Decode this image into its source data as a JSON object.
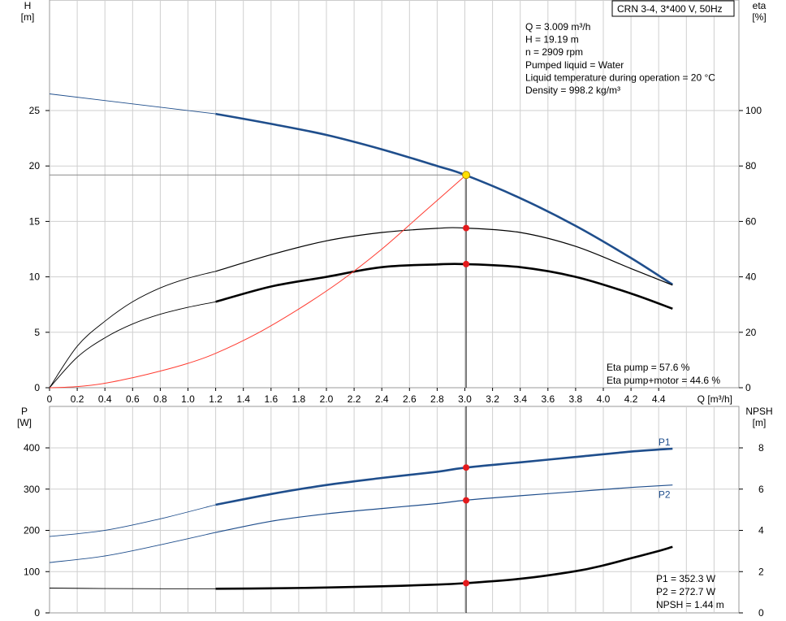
{
  "title_box": "CRN 3-4, 3*400 V, 50Hz",
  "colors": {
    "head_curve": "#1f4e8c",
    "power_curve": "#1f4e8c",
    "efficiency_curve": "#000000",
    "npsh_curve": "#000000",
    "system_curve": "#ff3b30",
    "duty_point": "#e41a1c",
    "duty_point_head": "#ffe000",
    "grid": "#cfcfcf"
  },
  "chart_data": [
    {
      "type": "line",
      "id": "head_efficiency",
      "title": "",
      "xlabel": "Q [m³/h]",
      "xlim": [
        0,
        4.8
      ],
      "x_ticks": [
        "0",
        "0.2",
        "0.4",
        "0.6",
        "0.8",
        "1.0",
        "1.2",
        "1.4",
        "1.6",
        "1.8",
        "2.0",
        "2.2",
        "2.4",
        "2.6",
        "2.8",
        "3.0",
        "3.2",
        "3.4",
        "3.6",
        "3.8",
        "4.0",
        "4.2",
        "4.4"
      ],
      "y_left": {
        "label_top": "H",
        "label_unit": "[m]",
        "lim": [
          0,
          28
        ],
        "ticks": [
          "0",
          "5",
          "10",
          "15",
          "20",
          "25"
        ]
      },
      "y_right": {
        "label_top": "eta",
        "label_unit": "[%]",
        "lim": [
          0,
          140
        ],
        "ticks": [
          "0",
          "20",
          "40",
          "60",
          "80",
          "100"
        ]
      },
      "info_lines": [
        "Q = 3.009 m³/h",
        "H = 19.19 m",
        "n = 2909 rpm",
        "Pumped liquid = Water",
        "Liquid temperature during operation = 20 °C",
        "Density = 998.2 kg/m³"
      ],
      "bottom_right_lines": [
        "Eta pump = 57.6 %",
        "Eta pump+motor = 44.6 %"
      ],
      "series": [
        {
          "role": "head",
          "axis": "left",
          "x": [
            0,
            1.2,
            1.6,
            2.0,
            2.4,
            2.8,
            3.0,
            3.4,
            3.8,
            4.2,
            4.5
          ],
          "y": [
            26.5,
            24.7,
            23.8,
            22.8,
            21.5,
            20.0,
            19.2,
            17.1,
            14.6,
            11.7,
            9.3
          ]
        },
        {
          "role": "eta_pump",
          "axis": "right",
          "x": [
            0,
            0.2,
            0.4,
            0.6,
            0.8,
            1.0,
            1.2,
            1.6,
            2.0,
            2.4,
            2.8,
            3.0,
            3.4,
            3.8,
            4.2,
            4.5
          ],
          "y": [
            0,
            15,
            24,
            31,
            36,
            39.5,
            42,
            48,
            53,
            56,
            57.5,
            57.6,
            56,
            51,
            43,
            37
          ]
        },
        {
          "role": "eta_pump_motor",
          "axis": "right",
          "x": [
            0,
            0.2,
            0.4,
            0.6,
            0.8,
            1.0,
            1.2,
            1.6,
            2.0,
            2.4,
            2.8,
            3.0,
            3.4,
            3.8,
            4.2,
            4.5
          ],
          "y": [
            0,
            11,
            18,
            23,
            26.5,
            29,
            31,
            36.5,
            40,
            43.5,
            44.5,
            44.6,
            43.5,
            40,
            34,
            28.5
          ]
        },
        {
          "role": "system_curve",
          "axis": "left",
          "x": [
            0,
            0.2,
            0.4,
            0.6,
            0.8,
            1.0,
            1.2,
            1.5,
            1.8,
            2.1,
            2.4,
            2.7,
            3.009
          ],
          "y": [
            0,
            0.1,
            0.4,
            0.9,
            1.5,
            2.2,
            3.1,
            4.9,
            7.1,
            9.6,
            12.5,
            15.8,
            19.19
          ]
        }
      ],
      "duty_point": {
        "x": 3.009,
        "head": 19.19,
        "eta_pump": 57.6,
        "eta_pump_motor": 44.6
      }
    },
    {
      "type": "line",
      "id": "power_npsh",
      "title": "",
      "xlabel": "",
      "xlim": [
        0,
        4.8
      ],
      "y_left": {
        "label_top": "P",
        "label_unit": "[W]",
        "lim": [
          0,
          450
        ],
        "ticks": [
          "0",
          "100",
          "200",
          "300",
          "400"
        ]
      },
      "y_right": {
        "label_top": "NPSH",
        "label_unit": "[m]",
        "lim": [
          0,
          9
        ],
        "ticks": [
          "0",
          "2",
          "4",
          "6",
          "8"
        ]
      },
      "bottom_right_lines": [
        "P1 = 352.3 W",
        "P2 = 272.7 W",
        "NPSH = 1.44 m"
      ],
      "series": [
        {
          "name": "P1",
          "role": "p1",
          "axis": "left",
          "x": [
            0,
            0.4,
            0.8,
            1.2,
            1.6,
            2.0,
            2.4,
            2.8,
            3.0,
            3.4,
            3.8,
            4.2,
            4.5
          ],
          "y": [
            185,
            200,
            228,
            262,
            288,
            310,
            327,
            342,
            352,
            365,
            378,
            391,
            398
          ]
        },
        {
          "name": "P2",
          "role": "p2",
          "axis": "left",
          "x": [
            0,
            0.4,
            0.8,
            1.2,
            1.6,
            2.0,
            2.4,
            2.8,
            3.0,
            3.4,
            3.8,
            4.2,
            4.5
          ],
          "y": [
            122,
            138,
            165,
            195,
            222,
            240,
            253,
            265,
            273,
            284,
            294,
            304,
            310
          ]
        },
        {
          "role": "npsh",
          "axis": "right",
          "x": [
            0,
            0.4,
            0.8,
            1.2,
            1.6,
            2.0,
            2.4,
            2.8,
            3.0,
            3.4,
            3.8,
            4.0,
            4.2,
            4.4,
            4.5
          ],
          "y": [
            1.2,
            1.18,
            1.17,
            1.17,
            1.19,
            1.23,
            1.29,
            1.37,
            1.44,
            1.65,
            2.02,
            2.3,
            2.65,
            3.0,
            3.2
          ]
        }
      ],
      "duty_point": {
        "x": 3.009,
        "p1": 352.3,
        "p2": 272.7,
        "npsh": 1.44
      }
    }
  ]
}
